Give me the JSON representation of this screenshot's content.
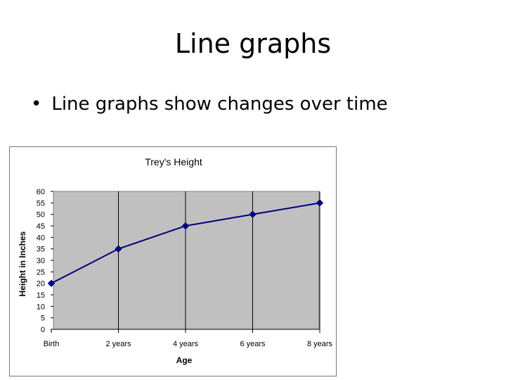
{
  "slide": {
    "title": "Line graphs",
    "bullet_symbol": "•",
    "bullet_text": "Line graphs show changes over time"
  },
  "chart_data": {
    "type": "line",
    "title": "Trey's Height",
    "xlabel": "Age",
    "ylabel": "Height in Inches",
    "categories": [
      "Birth",
      "2 years",
      "4 years",
      "6 years",
      "8 years"
    ],
    "series": [
      {
        "values": [
          20,
          35,
          45,
          50,
          55
        ]
      }
    ],
    "ylim": [
      0,
      60
    ],
    "ytick_step": 5,
    "grid": true,
    "legend": "none",
    "colors": {
      "line": "#000080",
      "plot_background": "#c0c0c0",
      "gridline": "#000000"
    }
  }
}
